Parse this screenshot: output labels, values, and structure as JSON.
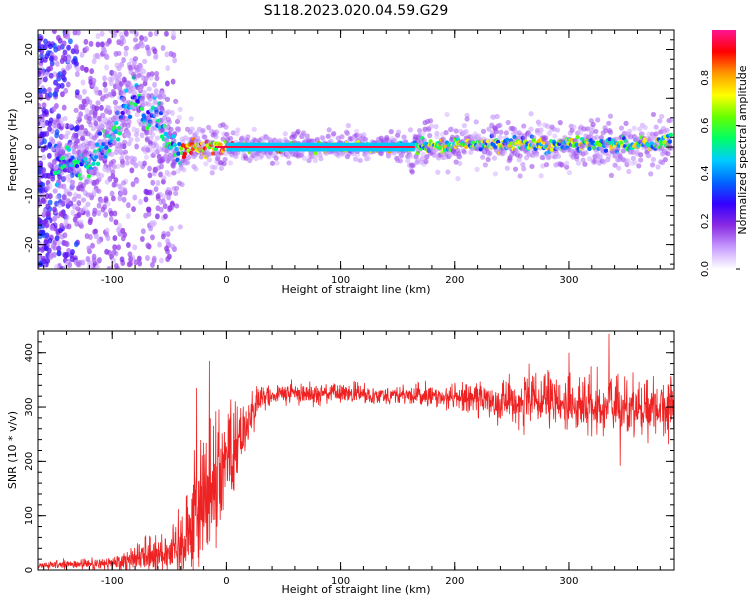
{
  "title": "S118.2023.020.04.59.G29",
  "colors": {
    "snr_line": "#ee2222",
    "colormap": [
      "#ffffff",
      "#c79bff",
      "#8a2be2",
      "#3300ff",
      "#0066ff",
      "#00ccff",
      "#00ff66",
      "#66ff00",
      "#ffff00",
      "#ff9900",
      "#ff0000",
      "#ff1493"
    ]
  },
  "chart_data": [
    {
      "type": "heatmap",
      "name": "spectrogram",
      "xlabel": "Height of straight line (km)",
      "ylabel": "Frequency (Hz)",
      "xlim": [
        -165,
        392
      ],
      "ylim": [
        -25,
        24
      ],
      "xticks": [
        -100,
        0,
        100,
        200,
        300
      ],
      "yticks": [
        -20,
        -10,
        0,
        10,
        20
      ],
      "colorbar": {
        "label": "Normalized spectral amplitude",
        "range": [
          0,
          1
        ],
        "ticks": [
          0.0,
          0.2,
          0.4,
          0.6,
          0.8
        ]
      },
      "ridge": [
        {
          "x": -130,
          "f": -3
        },
        {
          "x": -115,
          "f": -2
        },
        {
          "x": -100,
          "f": 2
        },
        {
          "x": -90,
          "f": 7
        },
        {
          "x": -80,
          "f": 12
        },
        {
          "x": -70,
          "f": 4
        },
        {
          "x": -62,
          "f": 8
        },
        {
          "x": -55,
          "f": 3
        },
        {
          "x": -48,
          "f": 0
        },
        {
          "x": -42,
          "f": -2
        },
        {
          "x": -35,
          "f": 0
        },
        {
          "x": 0,
          "f": 0
        },
        {
          "x": 150,
          "f": 0
        },
        {
          "x": 200,
          "f": 0.5
        },
        {
          "x": 300,
          "f": 0.5
        },
        {
          "x": 392,
          "f": 0.8
        }
      ]
    },
    {
      "type": "line",
      "name": "snr",
      "xlabel": "Height of straight line (km)",
      "ylabel": "SNR (10 * v/v)",
      "xlim": [
        -165,
        392
      ],
      "ylim": [
        0,
        440
      ],
      "xticks": [
        -100,
        0,
        100,
        200,
        300
      ],
      "yticks": [
        0,
        100,
        200,
        300,
        400
      ],
      "envelope": {
        "x": [
          -165,
          -100,
          -70,
          -45,
          -30,
          -10,
          10,
          30,
          50,
          100,
          150,
          200,
          240,
          300,
          350,
          392
        ],
        "mean": [
          8,
          12,
          30,
          35,
          90,
          170,
          240,
          315,
          325,
          325,
          322,
          318,
          312,
          305,
          300,
          300
        ],
        "amp": [
          6,
          15,
          40,
          55,
          120,
          150,
          80,
          25,
          22,
          20,
          20,
          25,
          45,
          60,
          60,
          55
        ]
      },
      "spikes": [
        {
          "x": -26,
          "y": 335
        },
        {
          "x": -15,
          "y": 385
        },
        {
          "x": 335,
          "y": 435
        },
        {
          "x": 300,
          "y": 400
        },
        {
          "x": 345,
          "y": 192
        },
        {
          "x": 265,
          "y": 380
        }
      ]
    }
  ]
}
